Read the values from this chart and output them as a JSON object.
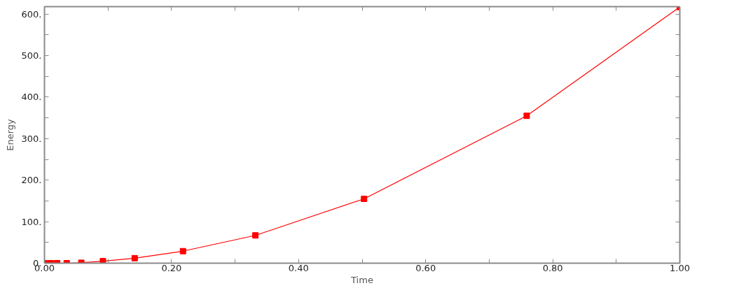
{
  "chart_data": {
    "type": "line",
    "xlabel": "Time",
    "ylabel": "Energy",
    "x": [
      0,
      0.01,
      0.02,
      0.035,
      0.058,
      0.092,
      0.142,
      0.218,
      0.332,
      0.503,
      0.759,
      1.0
    ],
    "series": [
      {
        "color": "#ff0000",
        "values": [
          0,
          0,
          0,
          0,
          1,
          5,
          12,
          29,
          67,
          155,
          355,
          617
        ]
      }
    ],
    "xlim": [
      0,
      1
    ],
    "ylim": [
      0,
      618
    ],
    "xticks": [
      {
        "value": 0,
        "label": "0.00"
      },
      {
        "value": 0.1,
        "label": null
      },
      {
        "value": 0.2,
        "label": "0.20"
      },
      {
        "value": 0.3,
        "label": null
      },
      {
        "value": 0.4,
        "label": "0.40"
      },
      {
        "value": 0.5,
        "label": null
      },
      {
        "value": 0.6,
        "label": "0.60"
      },
      {
        "value": 0.7,
        "label": null
      },
      {
        "value": 0.8,
        "label": "0.80"
      },
      {
        "value": 0.9,
        "label": null
      },
      {
        "value": 1,
        "label": "1.00"
      }
    ],
    "yticks": [
      {
        "value": 0,
        "label": "0."
      },
      {
        "value": 50,
        "label": null
      },
      {
        "value": 100,
        "label": "100."
      },
      {
        "value": 150,
        "label": null
      },
      {
        "value": 200,
        "label": "200."
      },
      {
        "value": 250,
        "label": null
      },
      {
        "value": 300,
        "label": "300."
      },
      {
        "value": 350,
        "label": null
      },
      {
        "value": 400,
        "label": "400."
      },
      {
        "value": 450,
        "label": null
      },
      {
        "value": 500,
        "label": "500."
      },
      {
        "value": 550,
        "label": null
      },
      {
        "value": 600,
        "label": "600."
      }
    ],
    "marker": "square",
    "line_style": "solid",
    "grid": false
  }
}
